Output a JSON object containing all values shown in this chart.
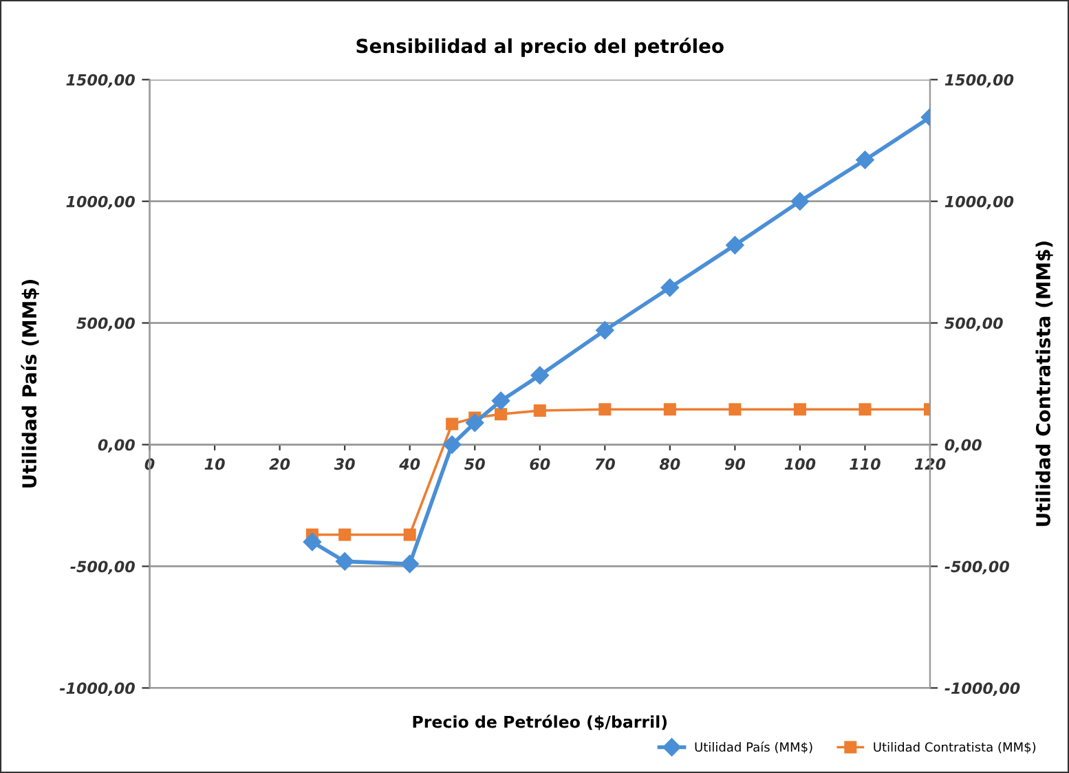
{
  "chart_data": {
    "type": "line",
    "title": "Sensibilidad al precio del petróleo",
    "xlabel": "Precio de Petróleo ($/barril)",
    "ylabel": "Utilidad País (MM$)",
    "y2label": "Utilidad Contratista (MM$)",
    "series": [
      {
        "name": "Utilidad País (MM$)",
        "color": "#4a8fd6",
        "marker": "diamond",
        "x": [
          25,
          30,
          40,
          46.5,
          50,
          54,
          60,
          70,
          80,
          90,
          100,
          110,
          120
        ],
        "values": [
          -400,
          -480,
          -490,
          0,
          90,
          180,
          285,
          470,
          645,
          820,
          1000,
          1170,
          1345
        ]
      },
      {
        "name": "Utilidad Contratista (MM$)",
        "color": "#ed7d31",
        "marker": "square",
        "axis": "y2",
        "x": [
          25,
          30,
          40,
          46.5,
          50,
          54,
          60,
          70,
          80,
          90,
          100,
          110,
          120
        ],
        "values": [
          -370,
          -370,
          -370,
          85,
          110,
          125,
          140,
          145,
          145,
          145,
          145,
          145,
          145
        ]
      }
    ],
    "xlim": [
      0,
      120
    ],
    "xticks": [
      0,
      10,
      20,
      30,
      40,
      50,
      60,
      70,
      80,
      90,
      100,
      110,
      120
    ],
    "ylim": [
      -1000,
      1500
    ],
    "yticks": [
      {
        "value": -1000,
        "label": "-1000,00"
      },
      {
        "value": -500,
        "label": "-500,00"
      },
      {
        "value": 0,
        "label": "0,00"
      },
      {
        "value": 500,
        "label": "500,00"
      },
      {
        "value": 1000,
        "label": "1000,00"
      },
      {
        "value": 1500,
        "label": "1500,00"
      }
    ],
    "y2lim": [
      -1000,
      1500
    ],
    "y2ticks": [
      {
        "value": -1000,
        "label": "-1000,00"
      },
      {
        "value": -500,
        "label": "-500,00"
      },
      {
        "value": 0,
        "label": "0,00"
      },
      {
        "value": 500,
        "label": "500,00"
      },
      {
        "value": 1000,
        "label": "1000,00"
      },
      {
        "value": 1500,
        "label": "1500,00"
      }
    ],
    "grid": "y",
    "legend": "bottom right",
    "line_style": "solid"
  }
}
